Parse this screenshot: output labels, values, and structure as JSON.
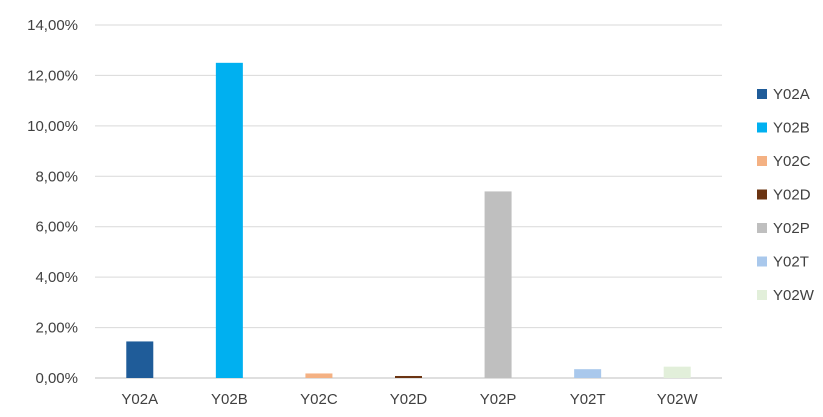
{
  "chart_data": {
    "type": "bar",
    "title": "",
    "xlabel": "",
    "ylabel": "",
    "categories": [
      "Y02A",
      "Y02B",
      "Y02C",
      "Y02D",
      "Y02P",
      "Y02T",
      "Y02W"
    ],
    "values": [
      0.0145,
      0.125,
      0.0018,
      0.0008,
      0.074,
      0.0035,
      0.0045
    ],
    "colors": [
      "#1f5c99",
      "#00b0f0",
      "#f4b183",
      "#6b3412",
      "#bfbfbf",
      "#a9c8ec",
      "#e2efda"
    ],
    "ylim": [
      0,
      0.14
    ],
    "yticks": [
      0,
      0.02,
      0.04,
      0.06,
      0.08,
      0.1,
      0.12,
      0.14
    ],
    "ytick_labels": [
      "0,00%",
      "2,00%",
      "4,00%",
      "6,00%",
      "8,00%",
      "10,00%",
      "12,00%",
      "14,00%"
    ],
    "grid": true,
    "legend": {
      "position": "right",
      "entries": [
        "Y02A",
        "Y02B",
        "Y02C",
        "Y02D",
        "Y02P",
        "Y02T",
        "Y02W"
      ]
    }
  }
}
